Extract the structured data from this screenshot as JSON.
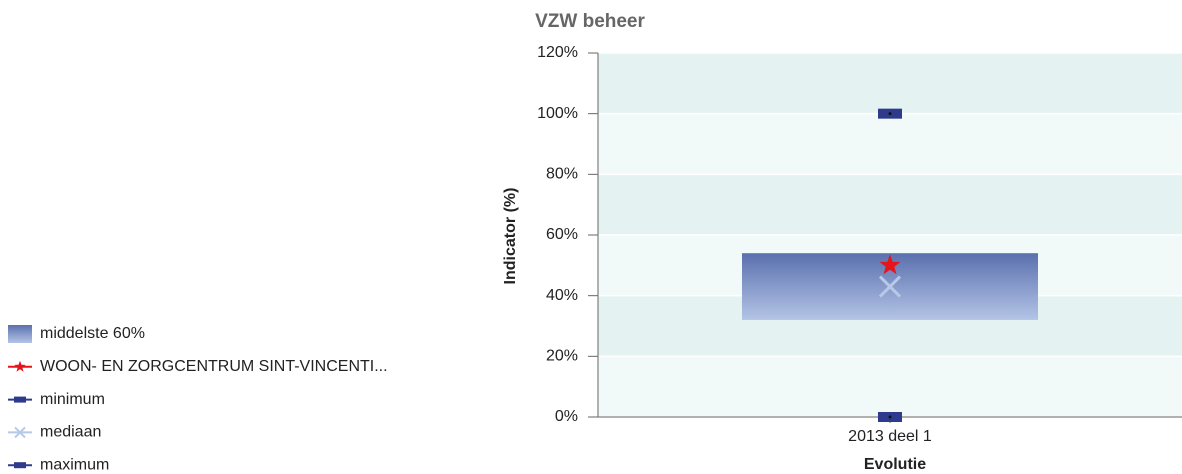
{
  "chart_data": {
    "type": "box",
    "title": "VZW beheer",
    "y_label": "Indicator (%)",
    "x_label": "Evolutie",
    "categories": [
      "2013 deel 1"
    ],
    "ylim": [
      0,
      120
    ],
    "yticks": [
      {
        "value": 0,
        "label": "0%"
      },
      {
        "value": 20,
        "label": "20%"
      },
      {
        "value": 40,
        "label": "40%"
      },
      {
        "value": 60,
        "label": "60%"
      },
      {
        "value": 80,
        "label": "80%"
      },
      {
        "value": 100,
        "label": "100%"
      },
      {
        "value": 120,
        "label": "120%"
      }
    ],
    "grid": true,
    "legend": "left",
    "series": [
      {
        "name": "middelste 60%",
        "color": "#6b82bd",
        "values": [
          [
            32,
            54
          ]
        ]
      },
      {
        "name": "WOON- EN ZORGCENTRUM SINT-VINCENTI...",
        "color": "#e8141b",
        "values": [
          50
        ]
      },
      {
        "name": "minimum",
        "color": "#2e3a8c",
        "values": [
          0
        ]
      },
      {
        "name": "mediaan",
        "color": "#b8c8e8",
        "values": [
          43
        ]
      },
      {
        "name": "maximum",
        "color": "#2e3a8c",
        "values": [
          100
        ]
      }
    ]
  }
}
